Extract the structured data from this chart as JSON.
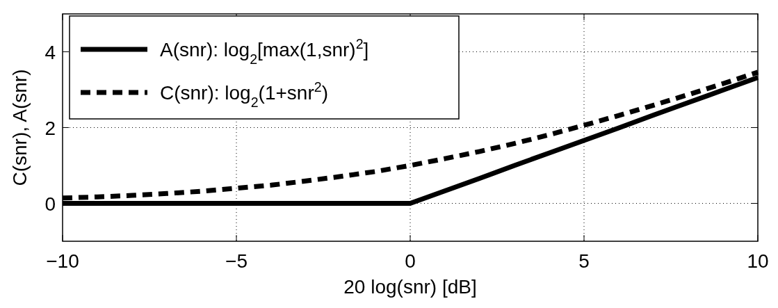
{
  "chart_data": {
    "type": "line",
    "xlabel": "20 log(snr) [dB]",
    "ylabel": "C(snr), A(snr)",
    "x": [
      -10,
      -9,
      -8,
      -7,
      -6,
      -5,
      -4,
      -3,
      -2,
      -1,
      0,
      1,
      2,
      3,
      4,
      5,
      6,
      7,
      8,
      9,
      10
    ],
    "series": [
      {
        "name": "A(snr): log$_{2}$[max(1,snr)$^{2}$]",
        "color": "#000000",
        "line_style": "solid",
        "values": [
          0,
          0,
          0,
          0,
          0,
          0,
          0,
          0,
          0,
          0,
          0,
          0.33,
          0.66,
          1.0,
          1.33,
          1.66,
          1.99,
          2.33,
          2.66,
          2.99,
          3.32
        ]
      },
      {
        "name": "C(snr): log$_{2}$(1+snr$^{2}$)",
        "color": "#000000",
        "line_style": "dashed",
        "values": [
          0.14,
          0.17,
          0.21,
          0.26,
          0.32,
          0.4,
          0.48,
          0.59,
          0.71,
          0.84,
          1.0,
          1.18,
          1.37,
          1.58,
          1.81,
          2.06,
          2.32,
          2.59,
          2.87,
          3.16,
          3.46
        ]
      }
    ],
    "xlim": [
      -10,
      10
    ],
    "xticks": [
      {
        "value": -10,
        "label": "−10"
      },
      {
        "value": -5,
        "label": "−5"
      },
      0,
      5,
      10
    ],
    "ylim": [
      -1,
      5
    ],
    "yticks": [
      0,
      2,
      4
    ],
    "grid": true,
    "legend": "top left",
    "marker": "none"
  }
}
